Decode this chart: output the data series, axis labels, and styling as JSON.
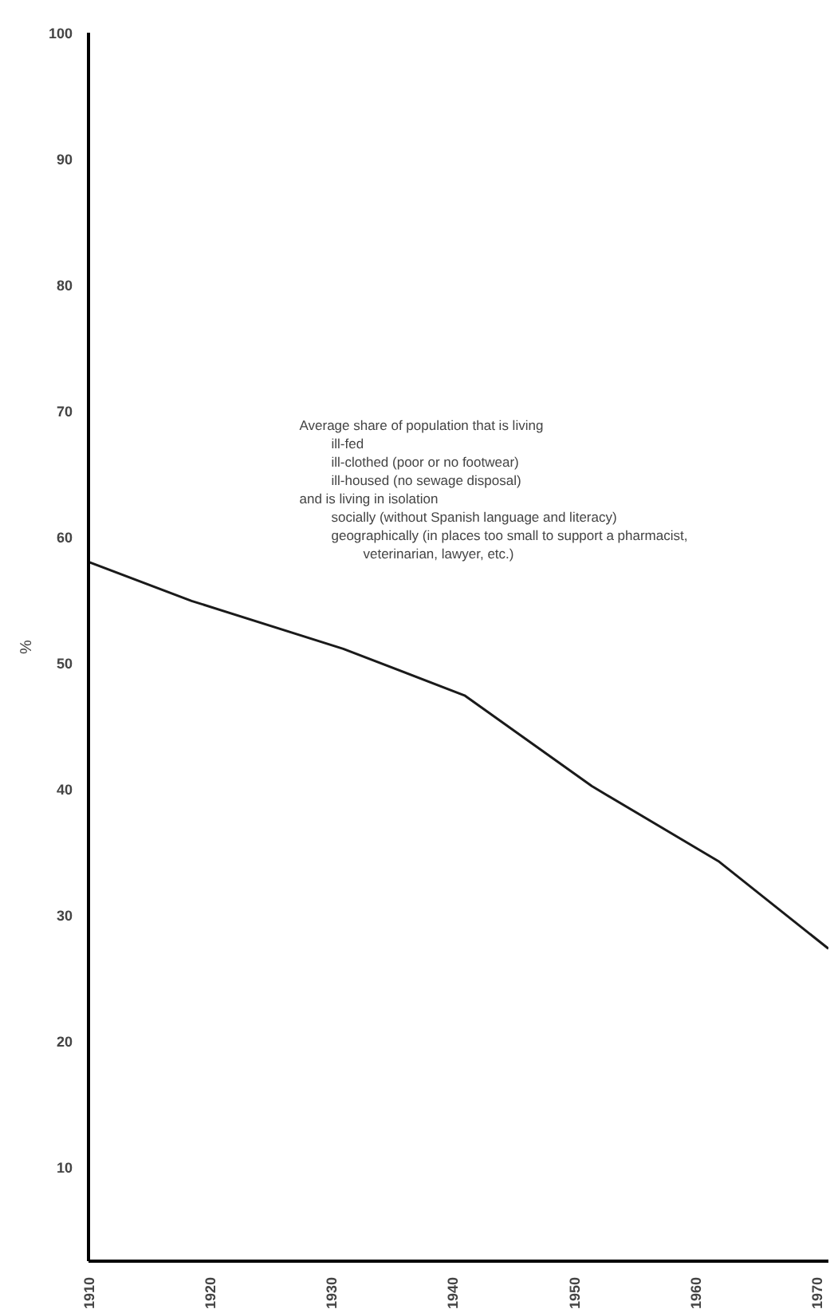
{
  "chart_data": {
    "type": "line",
    "ylabel": "%",
    "x": [
      1910,
      1918.5,
      1931,
      1941,
      1951.5,
      1962,
      1971
    ],
    "series": [
      {
        "color": "#1a1a1a",
        "values": [
          58.0,
          54.9,
          51.1,
          47.4,
          40.2,
          34.2,
          27.3
        ]
      }
    ],
    "xlim": [
      1910,
      1971
    ],
    "xticks": [
      1910,
      1920,
      1930,
      1940,
      1950,
      1960,
      1970
    ],
    "ylim": [
      2.5,
      100
    ],
    "yticks": [
      10,
      20,
      30,
      40,
      50,
      60,
      70,
      80,
      90,
      100
    ],
    "grid": false,
    "annotations": [
      "Average share of population that is living",
      "ill-fed",
      "ill-clothed (poor or no footwear)",
      "ill-housed (no sewage disposal)",
      "and is living in isolation",
      "socially (without Spanish language and literacy)",
      "geographically (in places too small to support a pharmacist,",
      "veterinarian, lawyer, etc.)"
    ]
  }
}
